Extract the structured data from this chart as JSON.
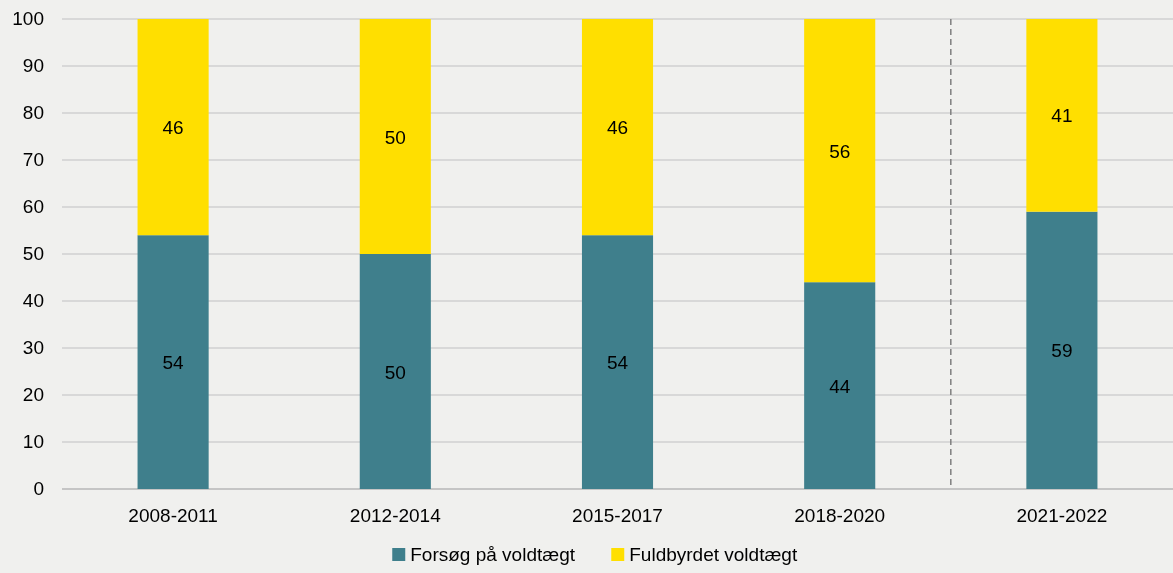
{
  "chart_data": {
    "type": "bar",
    "stacked": true,
    "categories": [
      "2008-2011",
      "2012-2014",
      "2015-2017",
      "2018-2020",
      "2021-2022"
    ],
    "series": [
      {
        "name": "Forsøg på voldtægt",
        "color": "#3f7f8c",
        "values": [
          54,
          50,
          54,
          44,
          59
        ]
      },
      {
        "name": "Fuldbyrdet voldtægt",
        "color": "#ffdf00",
        "values": [
          46,
          50,
          46,
          56,
          41
        ]
      }
    ],
    "ylim": [
      0,
      100
    ],
    "yticks": [
      0,
      10,
      20,
      30,
      40,
      50,
      60,
      70,
      80,
      90,
      100
    ],
    "grid": "y",
    "legend": "bottom",
    "data_labels": true
  }
}
